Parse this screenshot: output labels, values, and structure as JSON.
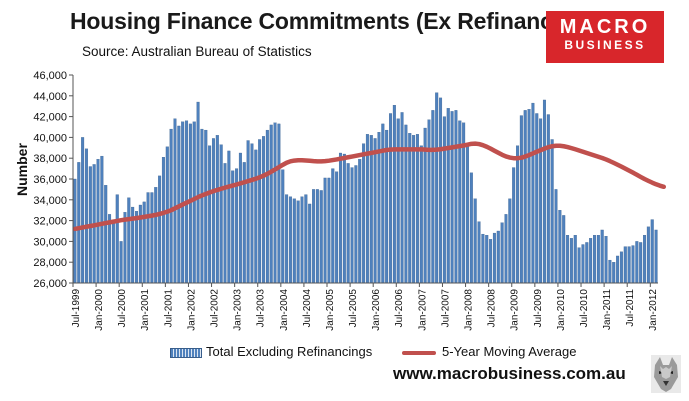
{
  "header": {
    "title": "Housing Finance Commitments (Ex Refinancings)",
    "subtitle": "Source: Australian  Bureau of Statistics"
  },
  "logo": {
    "line1": "MACRO",
    "line2": "BUSINESS",
    "line3": "",
    "color": "#d8262b"
  },
  "footer": {
    "url": "www.macrobusiness.com.au"
  },
  "wolf_icon": "wolf-face-icon",
  "chart_data": {
    "type": "bar",
    "title": "Housing Finance Commitments (Ex Refinancings)",
    "xlabel": "",
    "ylabel": "Number",
    "ylim": [
      26000,
      46000
    ],
    "yticks": [
      26000,
      28000,
      30000,
      32000,
      34000,
      36000,
      38000,
      40000,
      42000,
      44000,
      46000
    ],
    "ytick_labels": [
      "26,000",
      "28,000",
      "30,000",
      "32,000",
      "34,000",
      "36,000",
      "38,000",
      "40,000",
      "42,000",
      "44,000",
      "46,000"
    ],
    "grid": false,
    "legend_position": "bottom",
    "start_month": "1999-07",
    "xtick_labels": [
      "Jul-1999",
      "Jan-2000",
      "Jul-2000",
      "Jan-2001",
      "Jul-2001",
      "Jan-2002",
      "Jul-2002",
      "Jan-2003",
      "Jul-2003",
      "Jan-2004",
      "Jul-2004",
      "Jan-2005",
      "Jul-2005",
      "Jan-2006",
      "Jul-2006",
      "Jan-2007",
      "Jul-2007",
      "Jan-2008",
      "Jul-2008",
      "Jan-2009",
      "Jul-2009",
      "Jan-2010",
      "Jul-2010",
      "Jan-2011",
      "Jul-2011",
      "Jan-2012"
    ],
    "series": [
      {
        "name": "Total Excluding Refinancings",
        "type": "bar",
        "color": "#4f81bd",
        "values": [
          36000,
          37600,
          40000,
          38900,
          37200,
          37400,
          37900,
          38200,
          35400,
          32600,
          31800,
          34500,
          30000,
          32800,
          34200,
          33300,
          32900,
          33500,
          33800,
          34700,
          34700,
          35200,
          36300,
          38100,
          39100,
          40800,
          41800,
          41100,
          41500,
          41600,
          41300,
          41500,
          43400,
          40800,
          40700,
          39200,
          39900,
          40200,
          39300,
          37500,
          38700,
          36800,
          37000,
          38500,
          37600,
          39700,
          39400,
          38800,
          39800,
          40100,
          40700,
          41200,
          41400,
          41300,
          36900,
          34500,
          34300,
          34100,
          33900,
          34300,
          34500,
          33600,
          35000,
          35000,
          34900,
          36100,
          36100,
          37000,
          36700,
          38500,
          38400,
          37500,
          37100,
          37300,
          37900,
          39400,
          40300,
          40200,
          39900,
          40500,
          41300,
          40700,
          42300,
          43100,
          41800,
          42400,
          41200,
          40400,
          40200,
          40300,
          39200,
          40900,
          41700,
          42600,
          44300,
          43800,
          42000,
          42800,
          42500,
          42600,
          41600,
          41400,
          39300,
          36600,
          34100,
          31900,
          30700,
          30600,
          30200,
          30800,
          31000,
          31800,
          32600,
          34100,
          37100,
          39200,
          42100,
          42600,
          42700,
          43300,
          42300,
          41800,
          43600,
          42200,
          39800,
          35000,
          33000,
          32500,
          30600,
          30300,
          30600,
          29400,
          29700,
          29900,
          30300,
          30600,
          30600,
          31100,
          30500,
          28200,
          28000,
          28600,
          29000,
          29500,
          29500,
          29600,
          30000,
          29900,
          30600,
          31400,
          32100,
          31100
        ]
      },
      {
        "name": "5-Year Moving Average",
        "type": "line",
        "color": "#c0504d",
        "values": [
          31200,
          31270,
          31340,
          31410,
          31480,
          31550,
          31620,
          31690,
          31760,
          31830,
          31900,
          31970,
          32040,
          32090,
          32140,
          32190,
          32240,
          32300,
          32360,
          32420,
          32480,
          32550,
          32640,
          32740,
          32860,
          33000,
          33180,
          33360,
          33540,
          33720,
          33900,
          34080,
          34260,
          34420,
          34560,
          34700,
          34830,
          34950,
          35060,
          35170,
          35270,
          35370,
          35470,
          35580,
          35690,
          35800,
          35910,
          36020,
          36160,
          36320,
          36500,
          36700,
          36920,
          37140,
          37360,
          37560,
          37700,
          37770,
          37800,
          37800,
          37780,
          37750,
          37720,
          37700,
          37700,
          37720,
          37760,
          37820,
          37880,
          37950,
          38020,
          38090,
          38160,
          38230,
          38300,
          38370,
          38440,
          38510,
          38580,
          38650,
          38720,
          38790,
          38830,
          38850,
          38850,
          38850,
          38850,
          38850,
          38850,
          38850,
          38850,
          38830,
          38800,
          38800,
          38820,
          38860,
          38920,
          38980,
          39040,
          39100,
          39160,
          39220,
          39300,
          39380,
          39400,
          39360,
          39250,
          39100,
          38920,
          38720,
          38520,
          38330,
          38170,
          38060,
          38000,
          38000,
          38050,
          38160,
          38300,
          38460,
          38620,
          38770,
          38920,
          39060,
          39150,
          39200,
          39200,
          39150,
          39070,
          38970,
          38860,
          38740,
          38620,
          38500,
          38380,
          38260,
          38140,
          38020,
          37880,
          37720,
          37550,
          37370,
          37190,
          37000,
          36810,
          36610,
          36410,
          36200,
          36000,
          35820,
          35650,
          35490,
          35360,
          35250
        ]
      }
    ]
  }
}
